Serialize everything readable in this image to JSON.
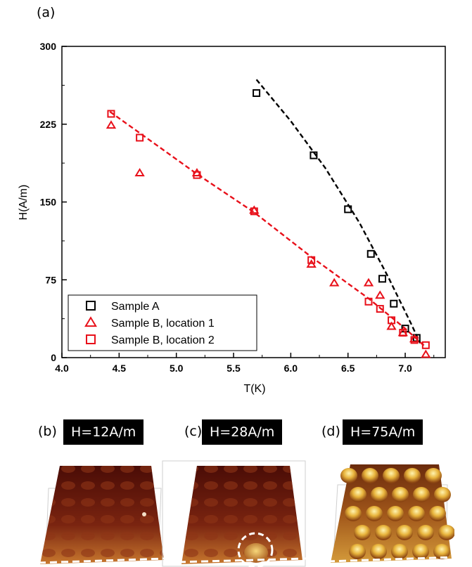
{
  "panel_a_label": "(a)",
  "chart_data": {
    "type": "scatter",
    "xlabel": "T(K)",
    "ylabel": "H(A/m)",
    "xlim": [
      4.0,
      7.35
    ],
    "ylim": [
      0,
      300
    ],
    "xticks": [
      "4.0",
      "4.5",
      "5.0",
      "5.5",
      "6.0",
      "6.5",
      "7.0"
    ],
    "yticks": [
      "0",
      "75",
      "150",
      "225",
      "300"
    ],
    "legend_position": "bottom-left",
    "series": [
      {
        "name": "Sample A",
        "marker": "square",
        "color": "#000000",
        "points": [
          [
            5.7,
            255
          ],
          [
            6.2,
            195
          ],
          [
            6.5,
            143
          ],
          [
            6.7,
            100
          ],
          [
            6.8,
            76
          ],
          [
            6.9,
            52
          ],
          [
            7.0,
            28
          ],
          [
            7.1,
            19
          ]
        ]
      },
      {
        "name": "Sample B, location 1",
        "marker": "triangle",
        "color": "#e8101a",
        "points": [
          [
            4.43,
            224
          ],
          [
            4.68,
            178
          ],
          [
            5.18,
            178
          ],
          [
            5.68,
            142
          ],
          [
            6.18,
            90
          ],
          [
            6.38,
            72
          ],
          [
            6.68,
            72
          ],
          [
            6.78,
            60
          ],
          [
            6.88,
            30
          ],
          [
            6.98,
            24
          ],
          [
            7.08,
            18
          ],
          [
            7.18,
            3
          ]
        ]
      },
      {
        "name": "Sample B, location 2",
        "marker": "square",
        "color": "#e8101a",
        "points": [
          [
            4.43,
            235
          ],
          [
            4.68,
            212
          ],
          [
            5.18,
            176
          ],
          [
            5.68,
            141
          ],
          [
            6.18,
            94
          ],
          [
            6.68,
            54
          ],
          [
            6.78,
            47
          ],
          [
            6.88,
            36
          ],
          [
            6.98,
            24
          ],
          [
            7.08,
            17
          ],
          [
            7.18,
            12
          ]
        ]
      }
    ],
    "fit_lines": [
      {
        "color": "#000000",
        "points": [
          [
            5.7,
            268
          ],
          [
            6.0,
            228
          ],
          [
            6.3,
            183
          ],
          [
            6.6,
            130
          ],
          [
            6.85,
            78
          ],
          [
            7.05,
            33
          ],
          [
            7.13,
            14
          ]
        ]
      },
      {
        "color": "#e8101a",
        "points": [
          [
            4.42,
            237
          ],
          [
            5.18,
            177
          ],
          [
            5.68,
            140
          ],
          [
            6.18,
            97
          ],
          [
            6.68,
            57
          ],
          [
            7.0,
            28
          ],
          [
            7.18,
            10
          ]
        ]
      }
    ]
  },
  "panels": [
    {
      "label": "(b)",
      "field": "H=12A/m"
    },
    {
      "label": "(c)",
      "field": "H=28A/m"
    },
    {
      "label": "(d)",
      "field": "H=75A/m"
    }
  ]
}
